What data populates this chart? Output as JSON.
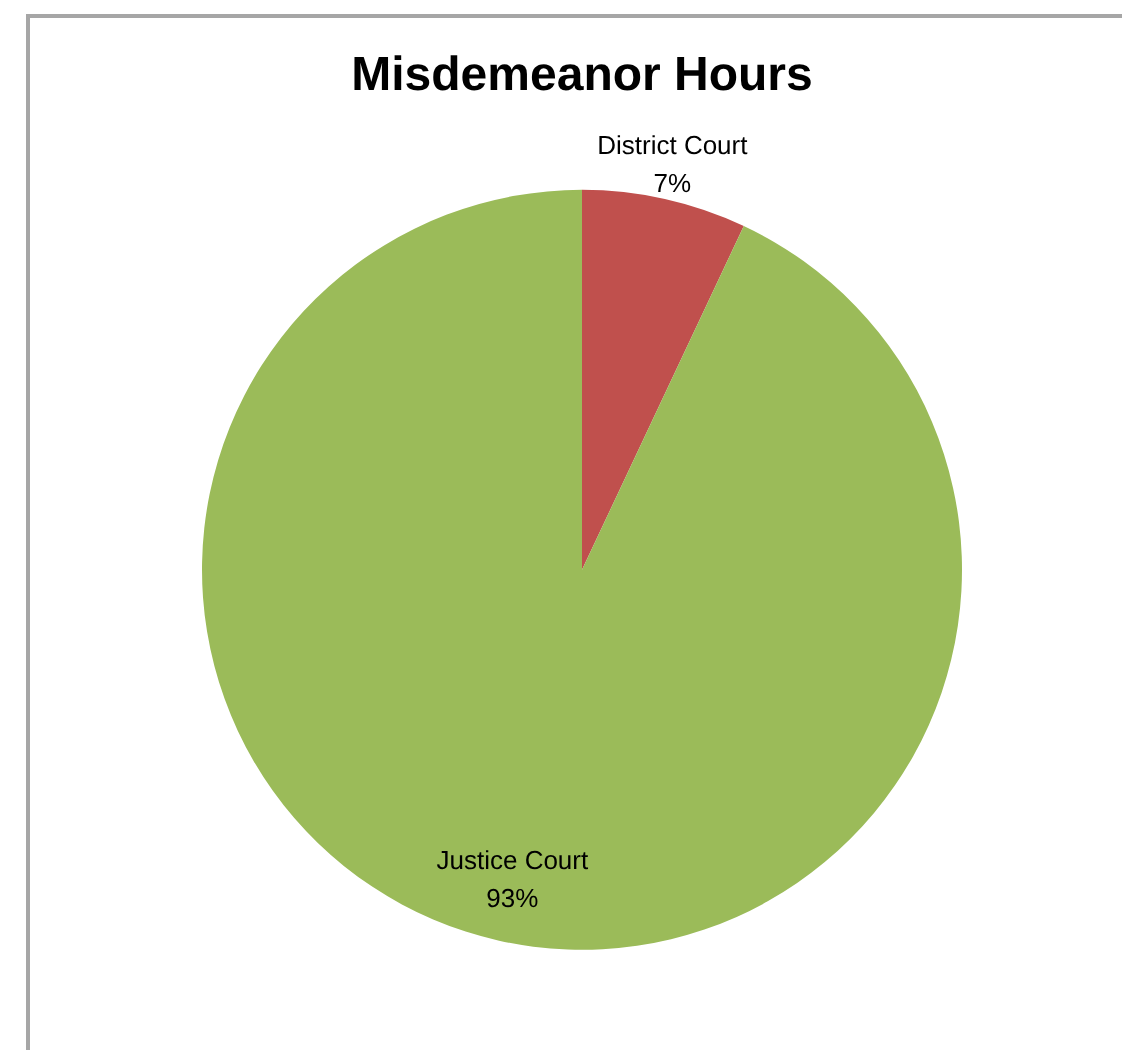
{
  "chart_data": {
    "type": "pie",
    "title": "Misdemeanor Hours",
    "categories": [
      "District Court",
      "Justice Court"
    ],
    "values": [
      7,
      93
    ],
    "colors": [
      "#c0504d",
      "#9bbb59"
    ],
    "value_labels": [
      "7%",
      "93%"
    ]
  }
}
